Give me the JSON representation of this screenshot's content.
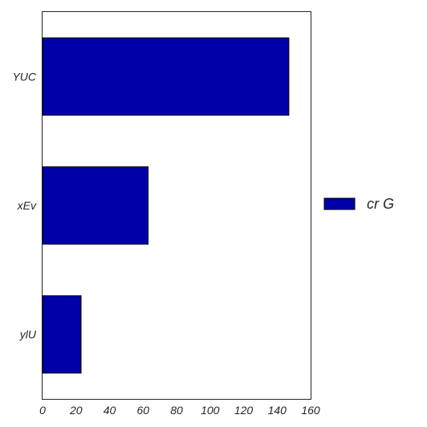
{
  "chart_data": {
    "type": "bar",
    "orientation": "horizontal",
    "categories": [
      "YUC",
      "xEv",
      "ylU"
    ],
    "series": [
      {
        "name": "cr G",
        "values": [
          147,
          63,
          23
        ]
      }
    ],
    "xlim": [
      0,
      160
    ],
    "xticks": [
      "0",
      "20",
      "40",
      "60",
      "80",
      "100",
      "120",
      "140",
      "160"
    ],
    "grid": false,
    "legend_position": "right",
    "bar_color": "#0000a8",
    "edge_color": "#000000"
  }
}
